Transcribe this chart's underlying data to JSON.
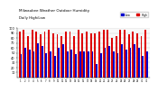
{
  "title": "Milwaukee Weather Outdoor Humidity",
  "subtitle": "Daily High/Low",
  "high_values": [
    93,
    97,
    83,
    97,
    93,
    87,
    93,
    97,
    90,
    87,
    83,
    93,
    93,
    83,
    97,
    90,
    93,
    90,
    90,
    93,
    97,
    97,
    80,
    83,
    97,
    97,
    87,
    93,
    90,
    83,
    97
  ],
  "low_values": [
    47,
    60,
    57,
    53,
    70,
    63,
    50,
    53,
    43,
    60,
    67,
    53,
    57,
    47,
    53,
    53,
    53,
    53,
    27,
    50,
    60,
    63,
    53,
    50,
    67,
    57,
    60,
    67,
    60,
    43,
    53
  ],
  "high_color": "#dd0000",
  "low_color": "#0000cc",
  "bg_color": "#ffffff",
  "plot_bg": "#f8f8f8",
  "ylim": [
    0,
    100
  ],
  "yticks": [
    10,
    20,
    30,
    40,
    50,
    60,
    70,
    80,
    90,
    100
  ],
  "bar_width": 0.4,
  "legend_high": "High",
  "legend_low": "Low"
}
